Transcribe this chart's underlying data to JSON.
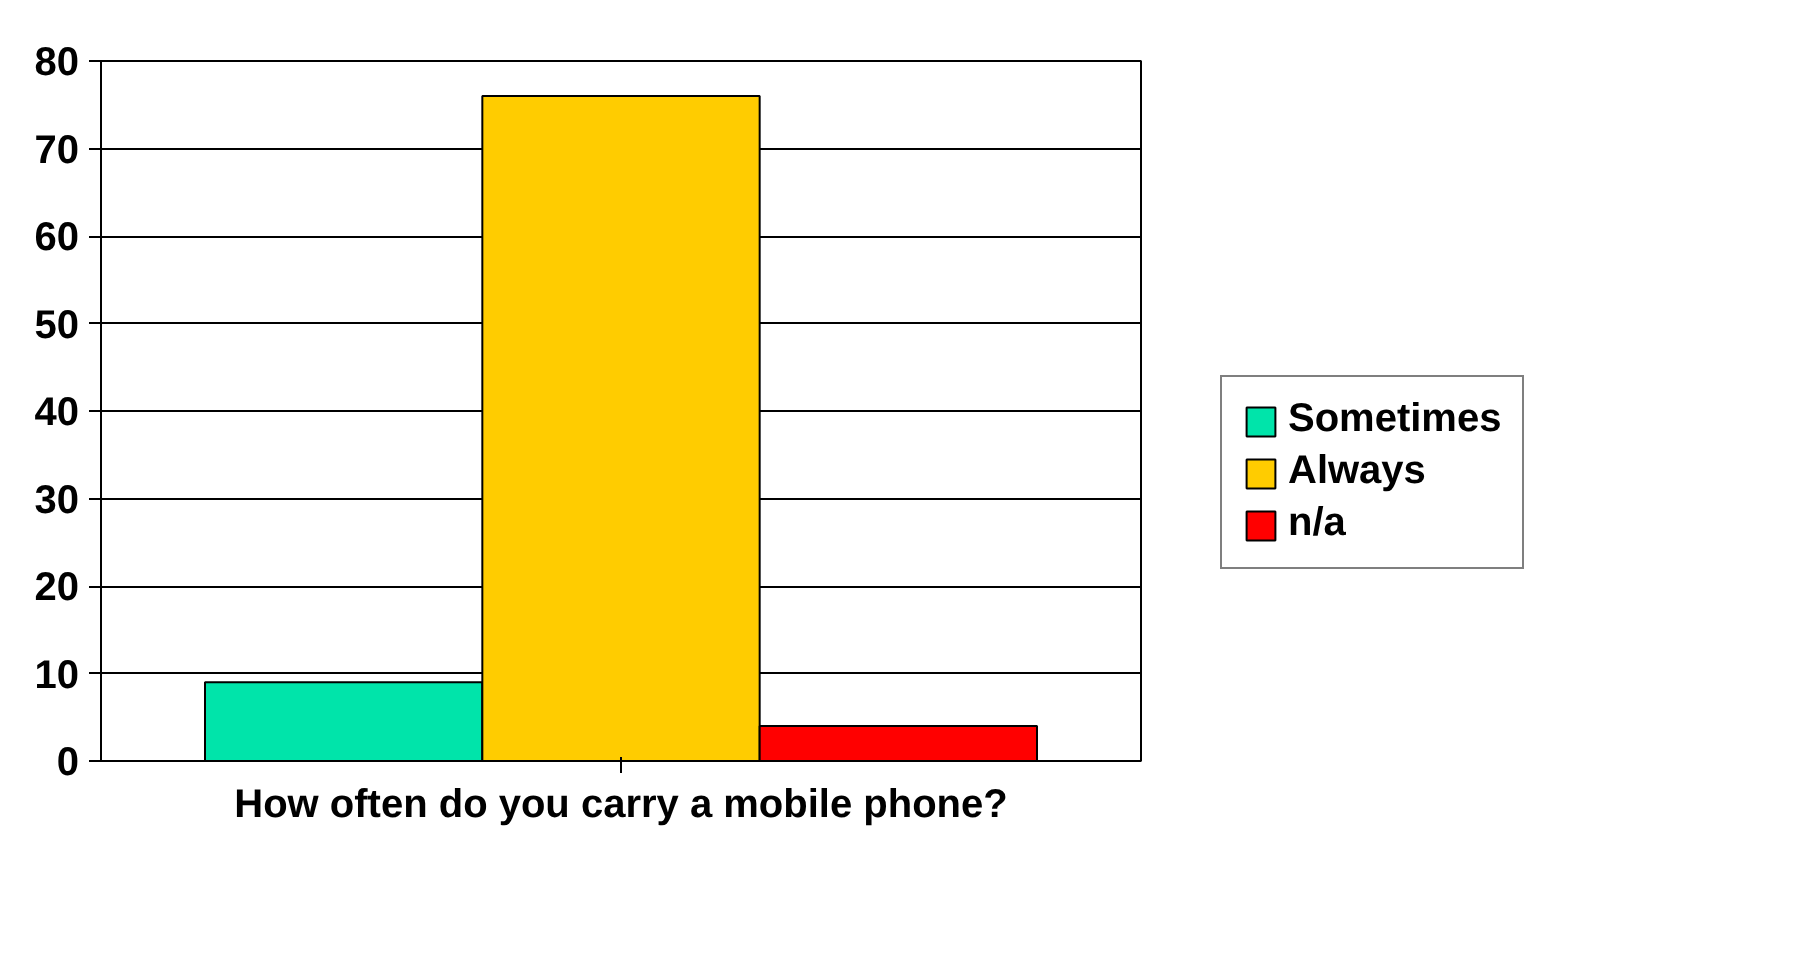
{
  "chart_data": {
    "type": "bar",
    "xlabel": "How often do you carry a mobile phone?",
    "categories": [
      null
    ],
    "series": [
      {
        "name": "Sometimes",
        "color": "#00e4aa",
        "values": [
          9
        ]
      },
      {
        "name": "Always",
        "color": "#ffcc00",
        "values": [
          76
        ]
      },
      {
        "name": "n/a",
        "color": "#ff0000",
        "values": [
          4
        ]
      }
    ],
    "ylim": [
      0,
      80
    ],
    "yticks": [
      0,
      10,
      20,
      30,
      40,
      50,
      60,
      70,
      80
    ],
    "grid": "y",
    "legend": "right"
  }
}
